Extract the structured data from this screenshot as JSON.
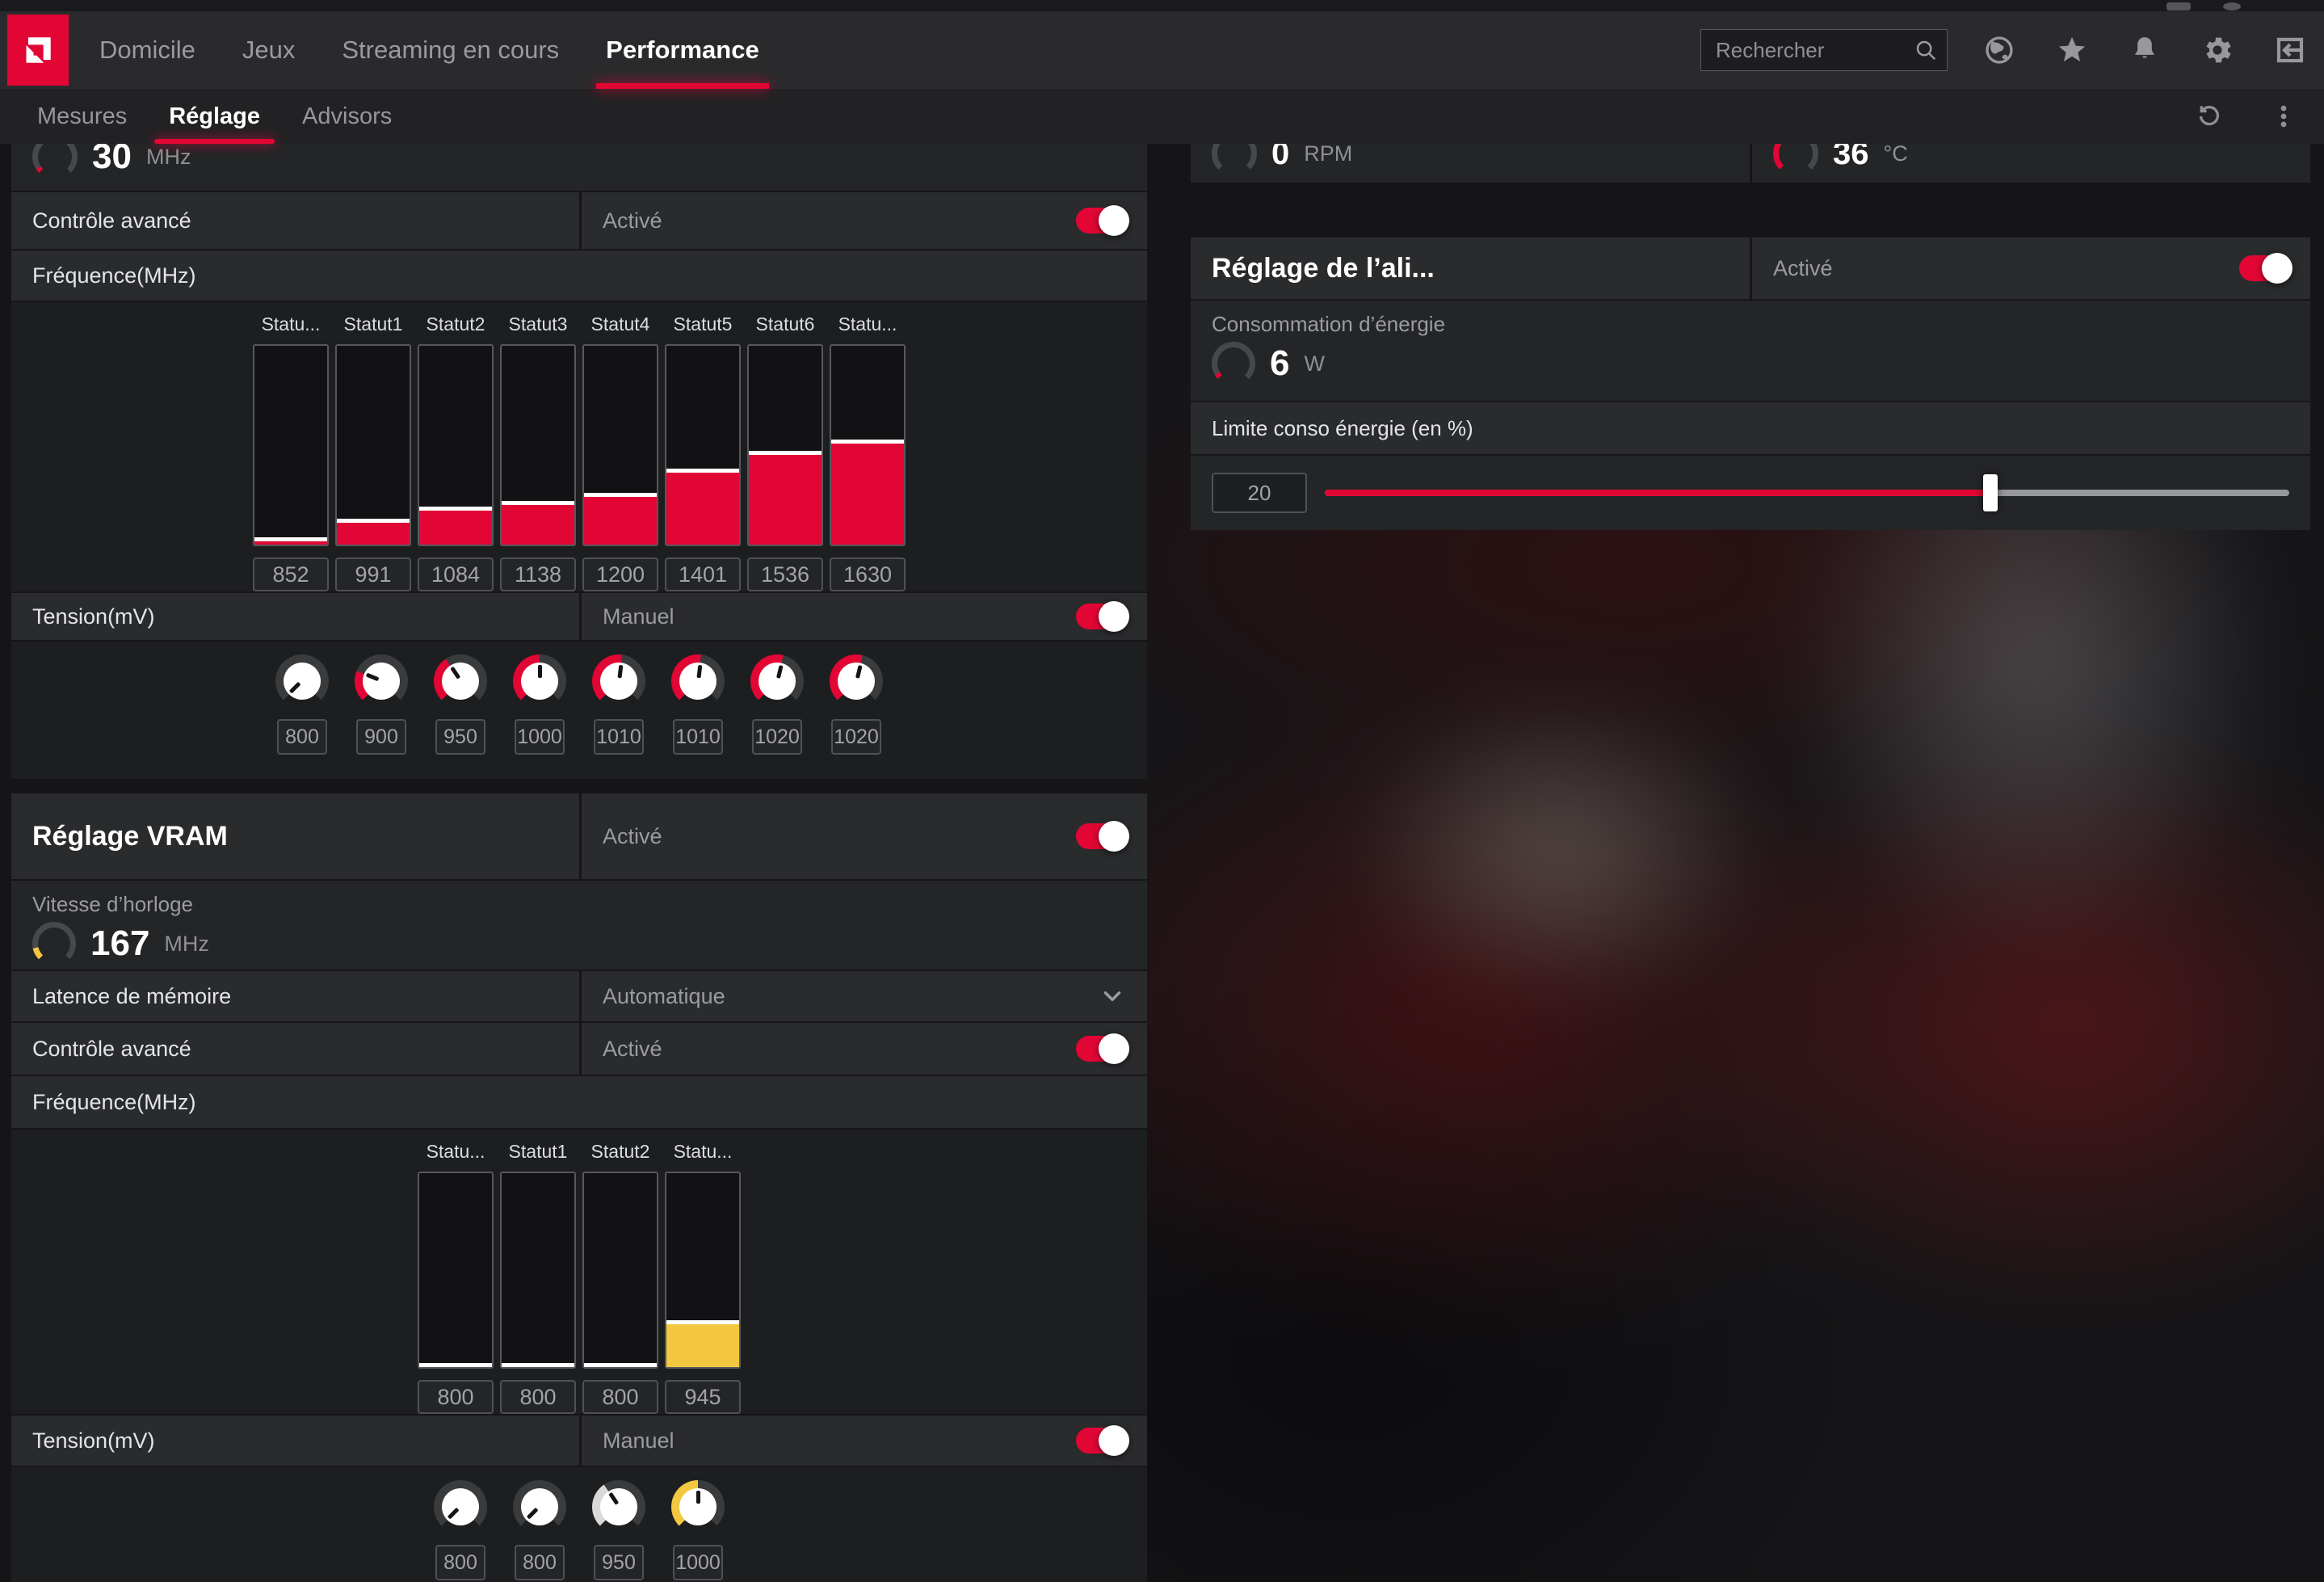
{
  "colors": {
    "accent": "#e10634",
    "yellow": "#f3c73f",
    "ring_gray": "#47484b",
    "knob_ring": "#3a3b3d"
  },
  "app": {
    "search_placeholder": "Rechercher"
  },
  "nav": {
    "items": [
      "Domicile",
      "Jeux",
      "Streaming en cours",
      "Performance"
    ],
    "active": "Performance"
  },
  "subnav": {
    "items": [
      "Mesures",
      "Réglage",
      "Advisors"
    ],
    "active": "Réglage"
  },
  "icons": {
    "topbar": [
      "magnifier",
      "globe",
      "star",
      "bell",
      "gear",
      "exit-to-tray"
    ],
    "subnav_right": [
      "undo-reset",
      "kebab-menu"
    ],
    "latency_row": "chevron-down"
  },
  "rows": {
    "gpu_adv": {
      "label": "Contrôle avancé",
      "value": "Activé"
    },
    "gpu_freq": {
      "label": "Fréquence(MHz)"
    },
    "gpu_volt": {
      "label": "Tension(mV)",
      "value": "Manuel"
    },
    "vram_header": {
      "label": "Réglage VRAM",
      "value": "Activé"
    },
    "vram_clock_label": "Vitesse d’horloge",
    "vram_latency": {
      "label": "Latence de mémoire",
      "value": "Automatique"
    },
    "vram_adv": {
      "label": "Contrôle avancé",
      "value": "Activé"
    },
    "vram_freq": {
      "label": "Fréquence(MHz)"
    },
    "vram_volt": {
      "label": "Tension(mV)",
      "value": "Manuel"
    },
    "power_header": {
      "label": "Réglage de l’ali...",
      "value": "Activé"
    },
    "power_cons_label": "Consommation d’énergie",
    "power_limit_label": "Limite conso énergie (en %)"
  },
  "gauges": {
    "gpu_clock": {
      "value": "30",
      "unit": "MHz",
      "fraction": 0.04,
      "color": "#e10634"
    },
    "fan": {
      "value": "0",
      "unit": "RPM",
      "fraction": 0,
      "color": "#e10634"
    },
    "temp": {
      "value": "36",
      "unit": "°C",
      "fraction": 0.28,
      "color": "#e10634"
    },
    "vram_clock": {
      "value": "167",
      "unit": "MHz",
      "fraction": 0.12,
      "color": "#f3c73f"
    },
    "power": {
      "value": "6",
      "unit": "W",
      "fraction": 0.05,
      "color": "#e10634"
    }
  },
  "chart_data": [
    {
      "id": "gpu_freq",
      "type": "bar",
      "title": "Fréquence(MHz)",
      "categories": [
        "Statu...",
        "Statut1",
        "Statut2",
        "Statut3",
        "Statut4",
        "Statut5",
        "Statut6",
        "Statu..."
      ],
      "values": [
        852,
        991,
        1084,
        1138,
        1200,
        1401,
        1536,
        1630
      ],
      "fill_percent": [
        1.8,
        11,
        17,
        20,
        24,
        36,
        45,
        51
      ],
      "bar_color": "#e10634",
      "xlabel": "",
      "ylabel": "MHz",
      "ylim": [
        800,
        2400
      ],
      "legend": "none",
      "grid": false
    },
    {
      "id": "vram_freq",
      "type": "bar",
      "title": "Fréquence(MHz)",
      "categories": [
        "Statu...",
        "Statut1",
        "Statut2",
        "Statu..."
      ],
      "values": [
        800,
        800,
        800,
        945
      ],
      "fill_percent": [
        0,
        0,
        0,
        22
      ],
      "bar_color": "#f3c73f",
      "xlabel": "",
      "ylabel": "MHz",
      "ylim": [
        800,
        1430
      ],
      "legend": "none",
      "grid": false
    }
  ],
  "knobs": {
    "gpu_voltage": [
      {
        "value": 800,
        "fraction": 0
      },
      {
        "value": 900,
        "fraction": 0.25
      },
      {
        "value": 950,
        "fraction": 0.375
      },
      {
        "value": 1000,
        "fraction": 0.5
      },
      {
        "value": 1010,
        "fraction": 0.525
      },
      {
        "value": 1010,
        "fraction": 0.525
      },
      {
        "value": 1020,
        "fraction": 0.55
      },
      {
        "value": 1020,
        "fraction": 0.55
      }
    ],
    "vram_voltage": [
      {
        "value": 800,
        "fraction": 0
      },
      {
        "value": 800,
        "fraction": 0
      },
      {
        "value": 950,
        "fraction": 0.375,
        "color": "#d8d8d8"
      },
      {
        "value": 1000,
        "fraction": 0.5,
        "color": "#f3c73f"
      }
    ]
  },
  "slider": {
    "value": "20",
    "percent": 69,
    "range_hint": [
      -50,
      50
    ]
  }
}
